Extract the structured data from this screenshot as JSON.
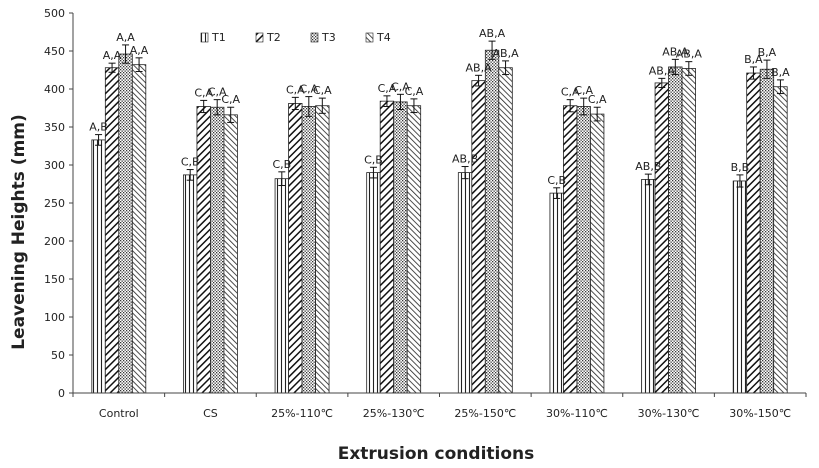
{
  "chart_data": {
    "type": "bar",
    "xlabel": "Extrusion conditions",
    "ylabel": "Leavening Heights (mm)",
    "ylim": [
      0,
      500
    ],
    "yticks": [
      0,
      50,
      100,
      150,
      200,
      250,
      300,
      350,
      400,
      450,
      500
    ],
    "grid": false,
    "legend_position": "top-left",
    "categories": [
      "Control",
      "CS",
      "25%-110℃",
      "25%-130℃",
      "25%-150℃",
      "30%-110℃",
      "30%-130℃",
      "30%-150℃"
    ],
    "series": [
      {
        "name": "T1",
        "pattern": "vertical",
        "values": [
          333,
          287,
          282,
          290,
          290,
          263,
          281,
          279
        ],
        "errors": [
          7,
          7,
          9,
          7,
          8,
          7,
          7,
          8
        ],
        "labels": [
          "A,B",
          "C,B",
          "C,B",
          "C,B",
          "AB,B",
          "C,B",
          "AB,B",
          "B,B"
        ]
      },
      {
        "name": "T2",
        "pattern": "diagonal",
        "values": [
          428,
          377,
          381,
          384,
          411,
          378,
          408,
          421
        ],
        "errors": [
          6,
          8,
          8,
          7,
          7,
          8,
          6,
          8
        ],
        "labels": [
          "A,A",
          "C,A",
          "C,A",
          "C,A",
          "AB,A",
          "C,A",
          "AB,A",
          "B,A"
        ]
      },
      {
        "name": "T3",
        "pattern": "dotted",
        "values": [
          446,
          376,
          377,
          383,
          451,
          377,
          429,
          426
        ],
        "errors": [
          12,
          10,
          13,
          10,
          12,
          11,
          10,
          12
        ],
        "labels": [
          "A,A",
          "C,A",
          "C,A",
          "C,A",
          "AB,A",
          "C,A",
          "AB,A",
          "B,A"
        ]
      },
      {
        "name": "T4",
        "pattern": "back-diagonal",
        "values": [
          432,
          366,
          378,
          378,
          428,
          367,
          427,
          403
        ],
        "errors": [
          9,
          10,
          10,
          9,
          9,
          9,
          9,
          9
        ],
        "labels": [
          "A,A",
          "C,A",
          "C,A",
          "C,A",
          "AB,A",
          "C,A",
          "AB,A",
          "B,A"
        ]
      }
    ]
  }
}
